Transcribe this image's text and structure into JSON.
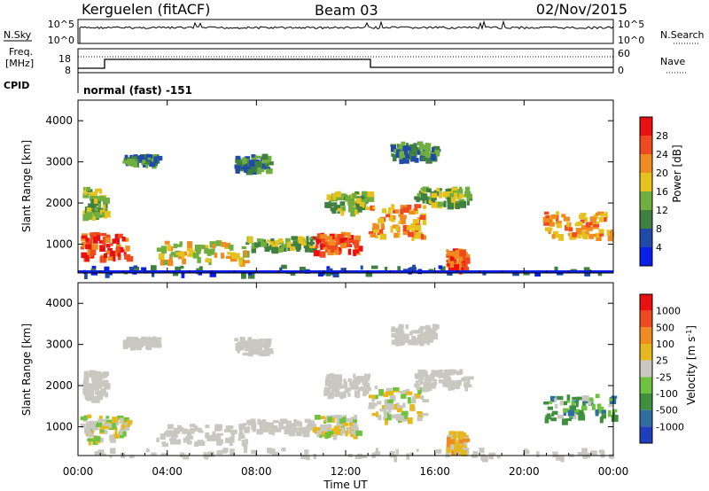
{
  "header": {
    "station": "Kerguelen (fitACF)",
    "beam": "Beam 03",
    "date": "02/Nov/2015"
  },
  "noise_panel": {
    "left_label": "N.Sky",
    "right_label": "N.Search",
    "y_top_label": "10^5",
    "y_bottom_label": "10^0"
  },
  "freq_panel": {
    "left_label_1": "Freq.",
    "left_label_2": "[MHz]",
    "right_label": "Nave",
    "left_ticks": [
      "18",
      "8"
    ],
    "right_ticks": [
      "60",
      "0"
    ]
  },
  "cpid": {
    "label": "CPID",
    "mode_text": "normal (fast) -151"
  },
  "colors": {
    "power_scale": [
      "#0a1fe6",
      "#1f4aa8",
      "#3f7f3f",
      "#6fae3f",
      "#e6c21f",
      "#f08c1f",
      "#ef4a1f",
      "#e81010"
    ],
    "velocity_scale": [
      "#1f3fbf",
      "#2f6fa0",
      "#3f8f3f",
      "#6fc23f",
      "#c8c8c0",
      "#e6b81f",
      "#f08c1f",
      "#ef4a1f",
      "#e81010"
    ]
  },
  "chart_data": [
    {
      "type": "heatmap",
      "name": "power",
      "ylabel": "Slant Range [km]",
      "ylim": [
        300,
        4500
      ],
      "yticks": [
        "1000",
        "2000",
        "3000",
        "4000"
      ],
      "colorbar_label": "Power [dB]",
      "colorbar_ticks": [
        "4",
        "8",
        "12",
        "16",
        "20",
        "24",
        "28"
      ]
    },
    {
      "type": "heatmap",
      "name": "velocity",
      "ylabel": "Slant Range [km]",
      "ylim": [
        300,
        4500
      ],
      "yticks": [
        "1000",
        "2000",
        "3000",
        "4000"
      ],
      "colorbar_label": "Velocity [m s",
      "colorbar_label_sup": "-1",
      "colorbar_label_end": "]",
      "colorbar_ticks": [
        "1000",
        "500",
        "100",
        "25",
        "-25",
        "-100",
        "-500",
        "-1000"
      ]
    }
  ],
  "xaxis": {
    "label": "Time UT",
    "ticks": [
      "00:00",
      "04:00",
      "08:00",
      "12:00",
      "16:00",
      "20:00",
      "00:00"
    ]
  }
}
